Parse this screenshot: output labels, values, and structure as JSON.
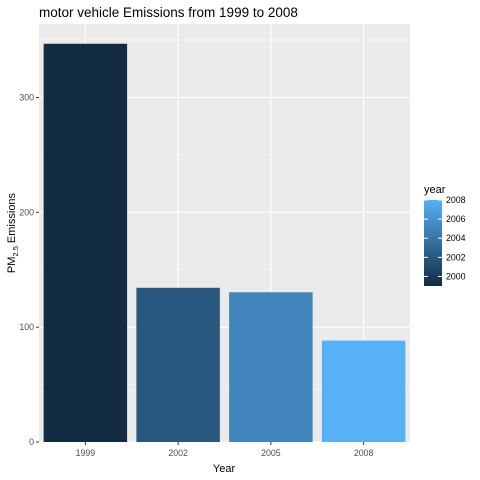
{
  "chart_data": {
    "type": "bar",
    "title": "motor vehicle Emissions from 1999 to 2008",
    "xlabel": "Year",
    "ylabel_main": "PM",
    "ylabel_subscript": "2.5",
    "ylabel_rest": " Emissions",
    "categories": [
      "1999",
      "2002",
      "2005",
      "2008"
    ],
    "values": [
      346.8,
      134.3,
      130.4,
      88.3
    ],
    "ylim": [
      0,
      364
    ],
    "yticks": [
      0,
      100,
      200,
      300
    ],
    "grid": true,
    "legend": {
      "title": "year",
      "placement": "right",
      "breaks": [
        "2000",
        "2002",
        "2004",
        "2006",
        "2008"
      ],
      "range": [
        1999,
        2008
      ],
      "low_color": "#132B43",
      "high_color": "#56B1F7"
    },
    "colors": {
      "panel_background": "#EBEBEB",
      "grid_major": "#FFFFFF",
      "grid_minor": "#F5F5F5",
      "tick_text": "#4D4D4D"
    }
  }
}
